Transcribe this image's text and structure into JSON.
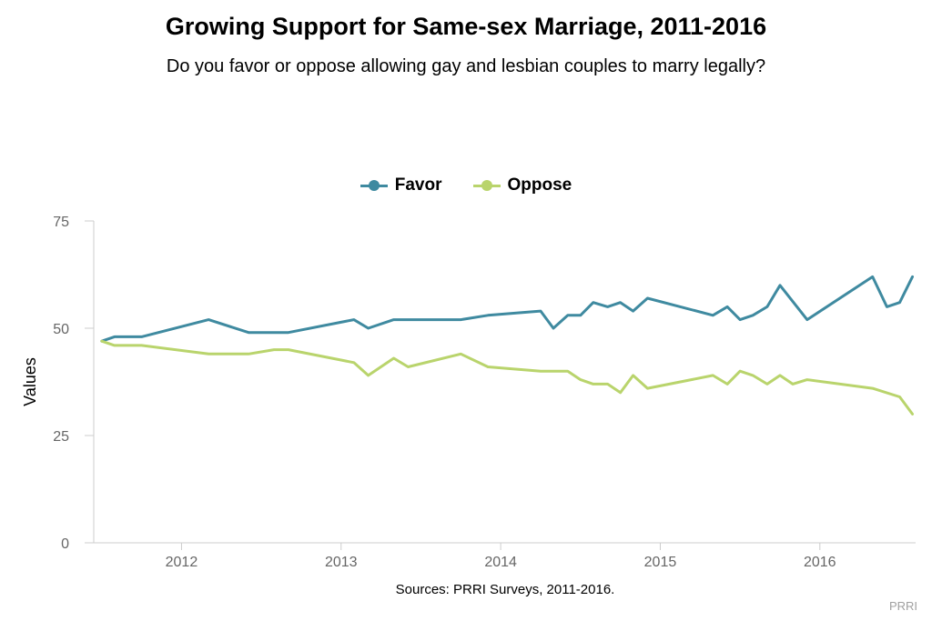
{
  "title": "Growing Support for Same-sex Marriage, 2011-2016",
  "subtitle": "Do you favor or oppose allowing gay and lesbian couples to marry legally?",
  "source": "Sources: PRRI Surveys, 2011-2016.",
  "credit": "PRRI",
  "colors": {
    "favor": "#3f8aa0",
    "oppose": "#b9d46c",
    "axis": "#cccccc",
    "tick_text": "#666666"
  },
  "chart_data": {
    "type": "line",
    "ylabel": "Values",
    "ylim": [
      0,
      75
    ],
    "yticks": [
      0,
      25,
      50,
      75
    ],
    "xlim": [
      2011.45,
      2016.6
    ],
    "xticks": [
      2012,
      2013,
      2014,
      2015,
      2016
    ],
    "xtick_labels": [
      "2012",
      "2013",
      "2014",
      "2015",
      "2016"
    ],
    "legend_position": "top-center",
    "grid": false,
    "series": [
      {
        "name": "Favor",
        "x": [
          2011.5,
          2011.58,
          2011.75,
          2012.17,
          2012.42,
          2012.67,
          2013.08,
          2013.17,
          2013.33,
          2013.75,
          2013.92,
          2014.25,
          2014.33,
          2014.42,
          2014.5,
          2014.58,
          2014.67,
          2014.75,
          2014.83,
          2014.92,
          2015.33,
          2015.42,
          2015.5,
          2015.58,
          2015.67,
          2015.75,
          2015.92,
          2016.33,
          2016.42,
          2016.5,
          2016.58
        ],
        "y": [
          47,
          48,
          48,
          52,
          49,
          49,
          52,
          50,
          52,
          52,
          53,
          54,
          50,
          53,
          53,
          56,
          55,
          56,
          54,
          57,
          53,
          55,
          52,
          53,
          55,
          60,
          52,
          62,
          55,
          56,
          62
        ]
      },
      {
        "name": "Oppose",
        "x": [
          2011.5,
          2011.58,
          2011.75,
          2012.17,
          2012.42,
          2012.58,
          2012.67,
          2013.08,
          2013.17,
          2013.33,
          2013.42,
          2013.75,
          2013.92,
          2014.25,
          2014.42,
          2014.5,
          2014.58,
          2014.67,
          2014.75,
          2014.83,
          2014.92,
          2015.33,
          2015.42,
          2015.5,
          2015.58,
          2015.67,
          2015.75,
          2015.83,
          2015.92,
          2016.33,
          2016.5,
          2016.58
        ],
        "y": [
          47,
          46,
          46,
          44,
          44,
          45,
          45,
          42,
          39,
          43,
          41,
          44,
          41,
          40,
          40,
          38,
          37,
          37,
          35,
          39,
          36,
          39,
          37,
          40,
          39,
          37,
          39,
          37,
          38,
          36,
          34,
          30
        ]
      }
    ]
  }
}
